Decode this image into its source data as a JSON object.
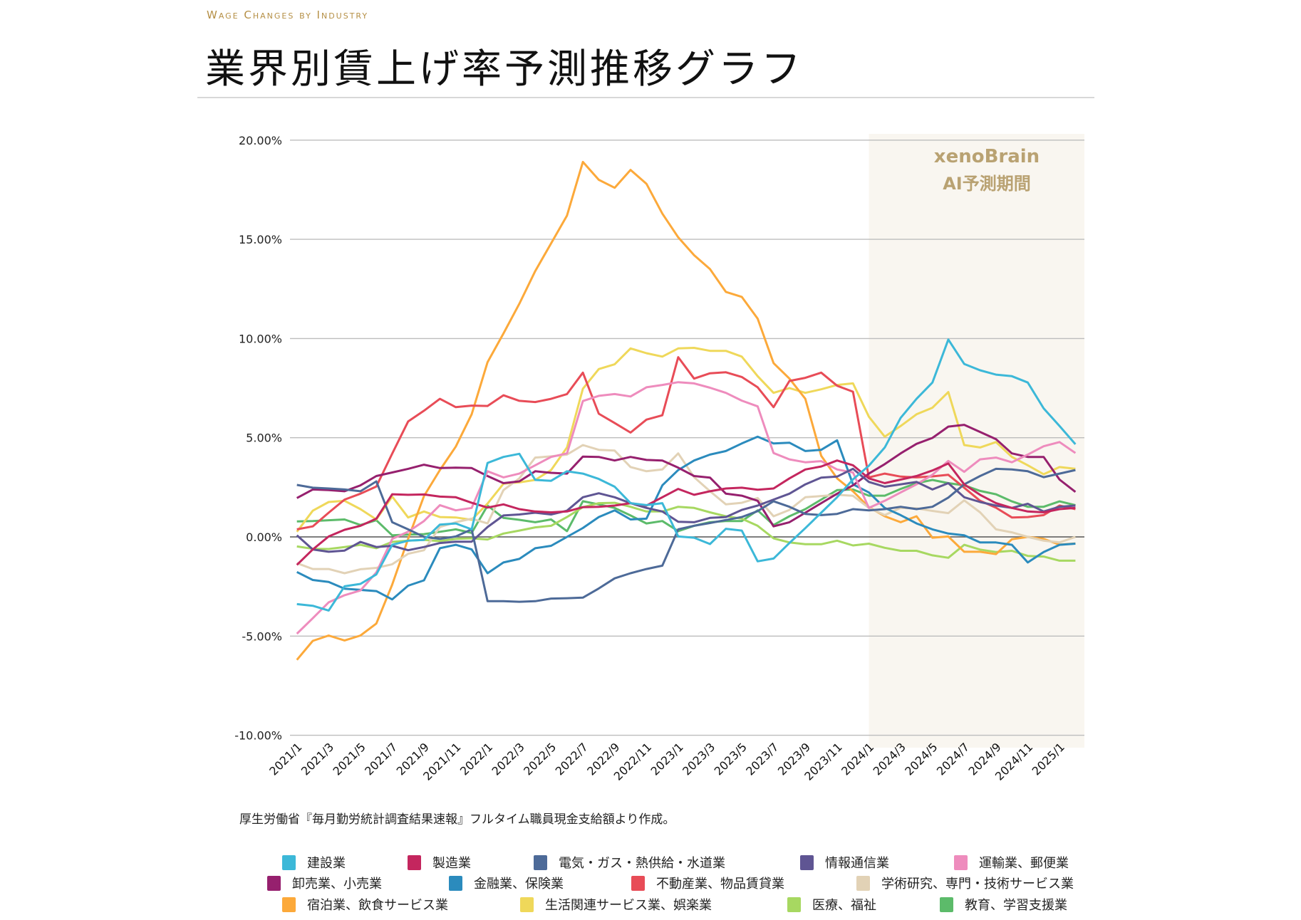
{
  "header": {
    "subtitle": "Wage Changes by Industry",
    "title": "業界別賃上げ率予測推移グラフ"
  },
  "forecast_region": {
    "label_line1": "xenoBrain",
    "label_line2": "AI予測期間",
    "start": "2024/1",
    "fill_color": "#f9f6f0",
    "text_color": "#b9a272"
  },
  "source_note": "厚生労働省『毎月勤労統計調査結果速報』フルタイム職員現金支給額より作成。",
  "chart_data": {
    "type": "line",
    "title": "業界別賃上げ率予測推移グラフ",
    "xlabel": "",
    "ylabel": "",
    "ylim": [
      -10,
      20
    ],
    "yticks": [
      "-10.00%",
      "-5.00%",
      "0.00%",
      "5.00%",
      "10.00%",
      "15.00%",
      "20.00%"
    ],
    "ytick_values": [
      -10,
      -5,
      0,
      5,
      10,
      15,
      20
    ],
    "grid": true,
    "legend_position": "bottom",
    "x": [
      "2021/1",
      "2021/2",
      "2021/3",
      "2021/4",
      "2021/5",
      "2021/6",
      "2021/7",
      "2021/8",
      "2021/9",
      "2021/10",
      "2021/11",
      "2021/12",
      "2022/1",
      "2022/2",
      "2022/3",
      "2022/4",
      "2022/5",
      "2022/6",
      "2022/7",
      "2022/8",
      "2022/9",
      "2022/10",
      "2022/11",
      "2022/12",
      "2023/1",
      "2023/2",
      "2023/3",
      "2023/4",
      "2023/5",
      "2023/6",
      "2023/7",
      "2023/8",
      "2023/9",
      "2023/10",
      "2023/11",
      "2023/12",
      "2024/1",
      "2024/2",
      "2024/3",
      "2024/4",
      "2024/5",
      "2024/6",
      "2024/7",
      "2024/8",
      "2024/9",
      "2024/10",
      "2024/11",
      "2024/12",
      "2025/1",
      "2025/2"
    ],
    "xtick_labels": [
      "2021/1",
      "2021/3",
      "2021/5",
      "2021/7",
      "2021/9",
      "2021/11",
      "2022/1",
      "2022/3",
      "2022/5",
      "2022/7",
      "2022/9",
      "2022/11",
      "2023/1",
      "2023/3",
      "2023/5",
      "2023/7",
      "2023/9",
      "2023/11",
      "2024/1",
      "2024/3",
      "2024/5",
      "2024/7",
      "2024/9",
      "2024/11",
      "2025/1"
    ],
    "series": [
      {
        "name": "建設業",
        "color": "#3cb8d8",
        "values": [
          -3.39,
          -3.47,
          -3.71,
          -2.49,
          -2.37,
          -1.89,
          -0.4,
          -0.19,
          -0.15,
          0.62,
          0.68,
          0.38,
          3.73,
          4.03,
          4.19,
          2.87,
          2.83,
          3.31,
          3.19,
          2.92,
          2.53,
          1.7,
          1.6,
          1.7,
          0.02,
          -0.04,
          -0.36,
          0.41,
          0.32,
          -1.23,
          -1.09,
          -0.31,
          0.44,
          1.22,
          2.0,
          2.9,
          3.59,
          4.51,
          6.0,
          6.96,
          7.78,
          9.95,
          8.72,
          8.4,
          8.18,
          8.1,
          7.78,
          6.48,
          5.59,
          4.67
        ]
      },
      {
        "name": "製造業",
        "color": "#c4265e",
        "values": [
          -1.41,
          -0.63,
          0.02,
          0.36,
          0.56,
          0.92,
          2.15,
          2.12,
          2.14,
          2.03,
          2.0,
          1.72,
          1.48,
          1.64,
          1.4,
          1.28,
          1.24,
          1.28,
          1.5,
          1.52,
          1.58,
          1.7,
          1.58,
          2.0,
          2.42,
          2.12,
          2.3,
          2.44,
          2.48,
          2.38,
          2.44,
          2.95,
          3.4,
          3.55,
          3.85,
          3.61,
          2.95,
          2.71,
          2.89,
          3.07,
          3.35,
          3.7,
          2.65,
          2.12,
          1.7,
          1.46,
          1.28,
          1.24,
          1.4,
          1.46
        ]
      },
      {
        "name": "電気・ガス・熱供給・水道業",
        "color": "#4d6a98",
        "values": [
          2.62,
          2.48,
          2.44,
          2.39,
          2.3,
          2.8,
          0.74,
          0.38,
          0.0,
          -0.1,
          0.02,
          0.38,
          -3.24,
          -3.24,
          -3.27,
          -3.24,
          -3.11,
          -3.09,
          -3.06,
          -2.6,
          -2.09,
          -1.83,
          -1.62,
          -1.45,
          0.38,
          0.56,
          0.7,
          0.85,
          1.0,
          1.3,
          1.8,
          1.52,
          1.16,
          1.1,
          1.16,
          1.4,
          1.34,
          1.4,
          1.52,
          1.4,
          1.52,
          1.98,
          2.65,
          3.07,
          3.43,
          3.4,
          3.31,
          3.01,
          3.19,
          3.37
        ]
      },
      {
        "name": "情報通信業",
        "color": "#5f5593",
        "values": [
          0.08,
          -0.63,
          -0.75,
          -0.69,
          -0.25,
          -0.51,
          -0.45,
          -0.67,
          -0.51,
          -0.31,
          -0.24,
          -0.24,
          0.5,
          1.08,
          1.13,
          1.22,
          1.13,
          1.32,
          2.0,
          2.2,
          2.0,
          1.7,
          1.46,
          1.28,
          0.76,
          0.74,
          0.96,
          1.0,
          1.36,
          1.58,
          1.88,
          2.18,
          2.65,
          2.99,
          3.04,
          3.43,
          2.77,
          2.53,
          2.65,
          2.77,
          2.39,
          2.71,
          2.0,
          1.76,
          1.58,
          1.46,
          1.67,
          1.28,
          1.52,
          1.58
        ]
      },
      {
        "name": "運輸業、郵便業",
        "color": "#ee8cbd",
        "values": [
          -4.88,
          -4.1,
          -3.3,
          -2.94,
          -2.7,
          -1.79,
          -0.1,
          0.26,
          0.8,
          1.6,
          1.34,
          1.46,
          3.31,
          3.0,
          3.19,
          3.61,
          4.03,
          4.21,
          6.85,
          7.11,
          7.2,
          7.08,
          7.54,
          7.66,
          7.8,
          7.74,
          7.52,
          7.26,
          6.87,
          6.58,
          4.23,
          3.91,
          3.76,
          3.82,
          3.4,
          3.25,
          1.46,
          1.82,
          2.24,
          2.65,
          3.13,
          3.83,
          3.28,
          3.91,
          4.0,
          3.76,
          4.15,
          4.57,
          4.78,
          4.23
        ]
      },
      {
        "name": "卸売業、小売業",
        "color": "#96206e",
        "values": [
          1.96,
          2.39,
          2.36,
          2.3,
          2.6,
          3.07,
          3.25,
          3.43,
          3.64,
          3.47,
          3.49,
          3.47,
          3.07,
          2.71,
          2.8,
          3.31,
          3.23,
          3.19,
          4.05,
          4.03,
          3.85,
          4.03,
          3.88,
          3.85,
          3.49,
          3.07,
          2.99,
          2.18,
          2.08,
          1.82,
          0.53,
          0.74,
          1.22,
          1.7,
          2.18,
          2.6,
          3.19,
          3.67,
          4.21,
          4.69,
          4.99,
          5.56,
          5.65,
          5.29,
          4.93,
          4.21,
          4.03,
          4.03,
          2.89,
          2.27
        ]
      },
      {
        "name": "金融業、保険業",
        "color": "#2b8bbd",
        "values": [
          -1.77,
          -2.17,
          -2.27,
          -2.61,
          -2.67,
          -2.73,
          -3.15,
          -2.46,
          -2.19,
          -0.57,
          -0.4,
          -0.63,
          -1.83,
          -1.29,
          -1.11,
          -0.57,
          -0.45,
          0.0,
          0.45,
          1.0,
          1.34,
          0.88,
          0.92,
          2.6,
          3.37,
          3.85,
          4.15,
          4.33,
          4.71,
          5.05,
          4.71,
          4.75,
          4.33,
          4.39,
          4.87,
          2.65,
          2.24,
          1.46,
          1.1,
          0.68,
          0.38,
          0.17,
          0.08,
          -0.28,
          -0.28,
          -0.4,
          -1.29,
          -0.76,
          -0.4,
          -0.34
        ]
      },
      {
        "name": "不動産業、物品賃貸業",
        "color": "#e84c57",
        "values": [
          0.38,
          0.53,
          1.22,
          1.88,
          2.18,
          2.54,
          4.2,
          5.82,
          6.36,
          6.96,
          6.54,
          6.62,
          6.6,
          7.14,
          6.86,
          6.8,
          6.96,
          7.2,
          8.28,
          6.21,
          5.74,
          5.26,
          5.91,
          6.13,
          9.06,
          7.98,
          8.25,
          8.3,
          8.06,
          7.54,
          6.54,
          7.86,
          8.02,
          8.28,
          7.62,
          7.32,
          3.0,
          3.19,
          3.04,
          3.0,
          3.05,
          3.13,
          2.48,
          1.82,
          1.47,
          0.98,
          1.0,
          1.1,
          1.58,
          1.4
        ]
      },
      {
        "name": "学術研究、専門・技術サービス業",
        "color": "#e2d2b6",
        "values": [
          -1.32,
          -1.62,
          -1.62,
          -1.83,
          -1.63,
          -1.56,
          -1.38,
          -0.85,
          -0.67,
          0.5,
          0.74,
          0.92,
          0.68,
          2.36,
          2.95,
          4.0,
          4.06,
          4.15,
          4.63,
          4.39,
          4.35,
          3.52,
          3.31,
          3.4,
          4.21,
          3.01,
          2.3,
          1.64,
          1.72,
          1.96,
          1.04,
          1.36,
          2.0,
          2.06,
          2.12,
          2.07,
          1.46,
          1.1,
          1.46,
          1.44,
          1.31,
          1.2,
          1.84,
          1.24,
          0.38,
          0.23,
          0.0,
          -0.19,
          -0.28,
          0.0
        ]
      },
      {
        "name": "宿泊業、飲食サービス業",
        "color": "#fca93a",
        "values": [
          -6.2,
          -5.24,
          -4.97,
          -5.22,
          -4.97,
          -4.37,
          -2.4,
          -0.1,
          2.06,
          3.37,
          4.55,
          6.18,
          8.81,
          10.25,
          11.75,
          13.4,
          14.8,
          16.2,
          18.9,
          18.0,
          17.6,
          18.5,
          17.8,
          16.3,
          15.1,
          14.2,
          13.5,
          12.35,
          12.1,
          11.0,
          8.76,
          7.98,
          6.96,
          4.09,
          2.95,
          2.3,
          1.5,
          1.04,
          0.74,
          1.04,
          -0.04,
          0.02,
          -0.75,
          -0.75,
          -0.87,
          -0.12,
          0.0,
          -0.1,
          -0.39,
          -0.33
        ]
      },
      {
        "name": "生活関連サービス業、娯楽業",
        "color": "#efd85a",
        "values": [
          0.26,
          1.32,
          1.76,
          1.82,
          1.4,
          0.88,
          2.03,
          0.98,
          1.28,
          1.0,
          0.98,
          0.86,
          1.68,
          2.68,
          2.75,
          2.87,
          3.37,
          4.51,
          7.47,
          8.46,
          8.7,
          9.5,
          9.26,
          9.09,
          9.5,
          9.53,
          9.38,
          9.38,
          9.09,
          8.1,
          7.26,
          7.5,
          7.26,
          7.44,
          7.66,
          7.74,
          6.06,
          5.05,
          5.59,
          6.18,
          6.51,
          7.3,
          4.63,
          4.51,
          4.78,
          4.03,
          3.61,
          3.16,
          3.52,
          3.43
        ]
      },
      {
        "name": "医療、福祉",
        "color": "#a7d861",
        "values": [
          -0.48,
          -0.6,
          -0.61,
          -0.51,
          -0.4,
          -0.57,
          -0.25,
          -0.19,
          -0.15,
          -0.21,
          -0.1,
          -0.07,
          -0.13,
          0.17,
          0.32,
          0.48,
          0.56,
          1.0,
          1.5,
          1.7,
          1.72,
          1.52,
          1.28,
          1.28,
          1.52,
          1.46,
          1.24,
          1.04,
          0.92,
          0.56,
          -0.07,
          -0.28,
          -0.37,
          -0.37,
          -0.19,
          -0.43,
          -0.34,
          -0.55,
          -0.7,
          -0.7,
          -0.93,
          -1.05,
          -0.4,
          -0.64,
          -0.76,
          -0.7,
          -0.96,
          -0.99,
          -1.2,
          -1.2
        ]
      },
      {
        "name": "教育、学習支援業",
        "color": "#5cbb6a",
        "values": [
          0.78,
          0.8,
          0.84,
          0.88,
          0.6,
          0.84,
          0.08,
          0.12,
          0.14,
          0.26,
          0.38,
          0.2,
          1.58,
          0.96,
          0.86,
          0.74,
          0.88,
          0.29,
          1.8,
          1.64,
          1.46,
          1.08,
          0.68,
          0.8,
          0.29,
          0.56,
          0.74,
          0.8,
          0.8,
          1.34,
          0.6,
          1.04,
          1.4,
          1.88,
          2.36,
          2.39,
          2.08,
          2.08,
          2.42,
          2.71,
          2.87,
          2.71,
          2.6,
          2.32,
          2.15,
          1.79,
          1.52,
          1.52,
          1.79,
          1.6
        ]
      }
    ]
  }
}
